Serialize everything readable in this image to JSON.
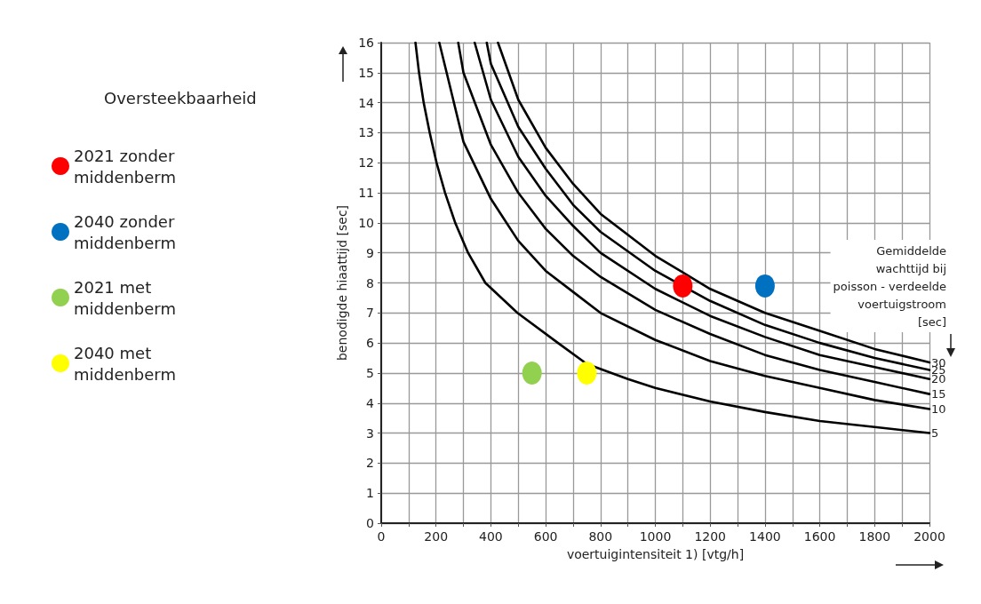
{
  "chart_data": {
    "type": "line",
    "xlabel": "voertuigintensiteit 1) [vtg/h]",
    "ylabel": "benodigde hiaattijd [sec]",
    "legend_title": "Oversteekbaarheid",
    "legend": "left",
    "grid": true,
    "line_style": "solid",
    "annotations": [
      "Gemiddelde wachttijd bij poisson - verdeelde voertuigstroom [sec]"
    ],
    "xlim": [
      0,
      2000
    ],
    "xticks": [
      0,
      {
        "value": 100,
        "label": null
      },
      200,
      {
        "value": 300,
        "label": null
      },
      400,
      {
        "value": 500,
        "label": null
      },
      600,
      {
        "value": 700,
        "label": null
      },
      800,
      {
        "value": 900,
        "label": null
      },
      1000,
      {
        "value": 1100,
        "label": null
      },
      1200,
      {
        "value": 1300,
        "label": null
      },
      1400,
      {
        "value": 1500,
        "label": null
      },
      1600,
      {
        "value": 1700,
        "label": null
      },
      1800,
      {
        "value": 1900,
        "label": null
      },
      2000
    ],
    "ylim": [
      0,
      16
    ],
    "yticks": [
      0,
      1,
      2,
      3,
      4,
      5,
      6,
      7,
      8,
      9,
      10,
      11,
      12,
      13,
      14,
      15,
      16
    ],
    "series": [
      {
        "name": "5",
        "type": "line",
        "marker": "none",
        "color": "#000000",
        "x": [
          125,
          138,
          155,
          177,
          202,
          233,
          270,
          317,
          380,
          497,
          645,
          750,
          900,
          1000,
          1200,
          1400,
          1600,
          1800,
          2000
        ],
        "values": [
          16,
          15,
          14,
          13,
          12,
          11,
          10,
          9,
          8,
          7,
          6,
          5.3,
          4.8,
          4.5,
          4.05,
          3.7,
          3.4,
          3.2,
          3.0
        ]
      },
      {
        "name": "10",
        "type": "line",
        "marker": "none",
        "color": "#000000",
        "x": [
          212,
          300,
          400,
          500,
          600,
          700,
          800,
          1000,
          1200,
          1400,
          1600,
          1800,
          2000
        ],
        "values": [
          16,
          12.7,
          10.8,
          9.4,
          8.4,
          7.7,
          7.0,
          6.1,
          5.4,
          4.9,
          4.5,
          4.1,
          3.8
        ]
      },
      {
        "name": "15",
        "type": "line",
        "marker": "none",
        "color": "#000000",
        "x": [
          281,
          300,
          400,
          500,
          600,
          700,
          800,
          1000,
          1200,
          1400,
          1600,
          1800,
          2000
        ],
        "values": [
          16,
          15.0,
          12.6,
          11.0,
          9.8,
          8.9,
          8.2,
          7.1,
          6.3,
          5.6,
          5.1,
          4.7,
          4.3
        ]
      },
      {
        "name": "20",
        "type": "line",
        "marker": "none",
        "color": "#000000",
        "x": [
          341,
          400,
          500,
          600,
          700,
          800,
          1000,
          1200,
          1400,
          1600,
          1800,
          2000
        ],
        "values": [
          16,
          14.1,
          12.2,
          10.9,
          9.9,
          9.0,
          7.8,
          6.9,
          6.2,
          5.6,
          5.2,
          4.8
        ]
      },
      {
        "name": "25",
        "type": "line",
        "marker": "none",
        "color": "#000000",
        "x": [
          385,
          400,
          500,
          600,
          700,
          800,
          1000,
          1200,
          1400,
          1600,
          1800,
          2000
        ],
        "values": [
          16,
          15.3,
          13.2,
          11.8,
          10.6,
          9.7,
          8.4,
          7.4,
          6.6,
          6.0,
          5.5,
          5.1
        ]
      },
      {
        "name": "30",
        "type": "line",
        "marker": "none",
        "color": "#000000",
        "x": [
          426,
          500,
          600,
          700,
          800,
          1000,
          1200,
          1400,
          1600,
          1800,
          2000
        ],
        "values": [
          16,
          14.1,
          12.5,
          11.3,
          10.3,
          8.9,
          7.8,
          7.0,
          6.4,
          5.8,
          5.35
        ]
      },
      {
        "name": "2021 zonder middenberm",
        "type": "scatter",
        "marker": "circle",
        "color": "#ff0000",
        "x": [
          1100
        ],
        "values": [
          7.9
        ]
      },
      {
        "name": "2040 zonder middenberm",
        "type": "scatter",
        "marker": "circle",
        "color": "#0070c0",
        "x": [
          1400
        ],
        "values": [
          7.9
        ]
      },
      {
        "name": "2021 met middenberm",
        "type": "scatter",
        "marker": "circle",
        "color": "#92d050",
        "x": [
          550
        ],
        "values": [
          5
        ]
      },
      {
        "name": "2040 met middenberm",
        "type": "scatter",
        "marker": "circle",
        "color": "#ffff00",
        "x": [
          750
        ],
        "values": [
          5
        ]
      }
    ]
  }
}
